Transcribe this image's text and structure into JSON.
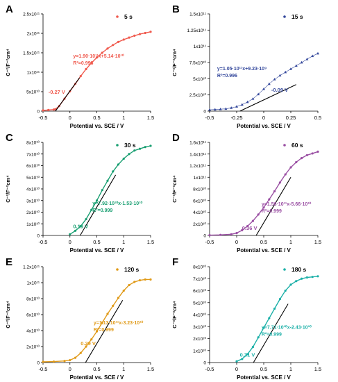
{
  "figure": {
    "xlabel": "Potential vs. SCE / V",
    "ylabel": "C⁻²/F⁻²cm⁴"
  },
  "chart_data": [
    {
      "panel": "A",
      "type": "scatter",
      "legend": "5 s",
      "color": "#f05a4e",
      "xlim": [
        -0.5,
        1.5
      ],
      "xticks": [
        "-0.5",
        "0",
        "0.5",
        "1",
        "1.5"
      ],
      "xtick_values": [
        -0.5,
        0,
        0.5,
        1,
        1.5
      ],
      "ylim": [
        0,
        250000000000.0
      ],
      "yticks": [
        "0",
        "5x10¹⁰",
        "1x10¹¹",
        "1.5x10¹¹",
        "2x10¹¹",
        "2.5x10¹¹"
      ],
      "ytick_values": [
        0,
        50000000000.0,
        100000000000.0,
        150000000000.0,
        200000000000.0,
        250000000000.0
      ],
      "series_x": [
        -0.5,
        -0.4,
        -0.3,
        -0.27,
        -0.2,
        -0.1,
        0,
        0.1,
        0.2,
        0.3,
        0.4,
        0.5,
        0.6,
        0.7,
        0.8,
        0.9,
        1.0,
        1.1,
        1.2,
        1.3,
        1.4,
        1.5
      ],
      "series_y": [
        2000000000.0,
        3000000000.0,
        4000000000.0,
        5000000000.0,
        13000000000.0,
        32000000000.0,
        51000000000.0,
        70000000000.0,
        90000000000.0,
        108000000000.0,
        124000000000.0,
        138000000000.0,
        150000000000.0,
        161000000000.0,
        170000000000.0,
        178000000000.0,
        184000000000.0,
        189000000000.0,
        194000000000.0,
        198000000000.0,
        201000000000.0,
        204000000000.0
      ],
      "fit_x": [
        -0.27,
        0.18
      ],
      "fit_y": [
        0,
        86000000000.0
      ],
      "equation": "y=1.90·10¹¹x+5.14·10¹⁰",
      "r2": "R²=0.998",
      "intercept_label": "-0.27 V"
    },
    {
      "panel": "B",
      "type": "scatter",
      "legend": "15 s",
      "color": "#34489c",
      "xlim": [
        -0.5,
        0.5
      ],
      "xticks": [
        "-0.5",
        "-0.25",
        "0",
        "0.25",
        "0.5"
      ],
      "xtick_values": [
        -0.5,
        -0.25,
        0,
        0.25,
        0.5
      ],
      "ylim": [
        0,
        150000000000.0
      ],
      "yticks": [
        "0",
        "2.5x10¹⁰",
        "5x10¹⁰",
        "7.5x10¹⁰",
        "1x10¹¹",
        "1.25x10¹¹",
        "1.5x10¹¹"
      ],
      "ytick_values": [
        0,
        25000000000.0,
        50000000000.0,
        75000000000.0,
        100000000000.0,
        125000000000.0,
        150000000000.0
      ],
      "series_x": [
        -0.5,
        -0.45,
        -0.4,
        -0.35,
        -0.3,
        -0.25,
        -0.2,
        -0.15,
        -0.1,
        -0.05,
        0,
        0.05,
        0.1,
        0.15,
        0.2,
        0.25,
        0.3,
        0.35,
        0.4,
        0.45,
        0.5
      ],
      "series_y": [
        2000000000.0,
        2500000000.0,
        3000000000.0,
        3500000000.0,
        5000000000.0,
        7000000000.0,
        10000000000.0,
        14000000000.0,
        19000000000.0,
        26000000000.0,
        34000000000.0,
        42000000000.0,
        49000000000.0,
        55000000000.0,
        60000000000.0,
        65000000000.0,
        70000000000.0,
        75000000000.0,
        80000000000.0,
        85000000000.0,
        89000000000.0
      ],
      "fit_x": [
        -0.22,
        0.3
      ],
      "fit_y": [
        -14000000000.0,
        41000000000.0
      ],
      "equation": "y=1.05·10¹¹x+9.23·10⁹",
      "r2": "R²=0.996",
      "intercept_label": "-0.09 V"
    },
    {
      "panel": "C",
      "type": "scatter",
      "legend": "30 s",
      "color": "#1a9f72",
      "xlim": [
        -0.5,
        1.5
      ],
      "xticks": [
        "-0.5",
        "0",
        "0.5",
        "1",
        "1.5"
      ],
      "xtick_values": [
        -0.5,
        0,
        0.5,
        1,
        1.5
      ],
      "ylim": [
        0,
        80000000000.0
      ],
      "yticks": [
        "0",
        "1x10¹⁰",
        "2x10¹⁰",
        "3x10¹⁰",
        "4x10¹⁰",
        "5x10¹⁰",
        "6x10¹⁰",
        "7x10¹⁰",
        "8x10¹⁰"
      ],
      "ytick_values": [
        0,
        10000000000.0,
        20000000000.0,
        30000000000.0,
        40000000000.0,
        50000000000.0,
        60000000000.0,
        70000000000.0,
        80000000000.0
      ],
      "series_x": [
        0,
        0.1,
        0.2,
        0.3,
        0.4,
        0.5,
        0.6,
        0.7,
        0.8,
        0.9,
        1.0,
        1.1,
        1.2,
        1.3,
        1.4,
        1.5
      ],
      "series_y": [
        1000000000.0,
        4000000000.0,
        8000000000.0,
        14000000000.0,
        22000000000.0,
        30000000000.0,
        39000000000.0,
        47000000000.0,
        55000000000.0,
        61000000000.0,
        66000000000.0,
        70000000000.0,
        73000000000.0,
        74500000000.0,
        76000000000.0,
        77000000000.0
      ],
      "fit_x": [
        0.19,
        0.85
      ],
      "fit_y": [
        0,
        52000000000.0
      ],
      "equation": "y=7.92·10¹⁰x-1.53·10¹⁰",
      "r2": "R²=0.999",
      "intercept_label": "0.19 V"
    },
    {
      "panel": "D",
      "type": "scatter",
      "legend": "60 s",
      "color": "#9a4fa3",
      "xlim": [
        -0.5,
        1.5
      ],
      "xticks": [
        "-0.5",
        "0",
        "0.5",
        "1",
        "1.5"
      ],
      "xtick_values": [
        -0.5,
        0,
        0.5,
        1,
        1.5
      ],
      "ylim": [
        0,
        160000000000.0
      ],
      "yticks": [
        "0",
        "2x10¹⁰",
        "4x10¹⁰",
        "6x10¹⁰",
        "8x10¹⁰",
        "1x10¹¹",
        "1.2x10¹¹",
        "1.4x10¹¹",
        "1.6x10¹¹"
      ],
      "ytick_values": [
        0,
        20000000000.0,
        40000000000.0,
        60000000000.0,
        80000000000.0,
        100000000000.0,
        120000000000.0,
        140000000000.0,
        160000000000.0
      ],
      "series_x": [
        -0.5,
        -0.3,
        -0.1,
        0,
        0.1,
        0.2,
        0.3,
        0.4,
        0.5,
        0.6,
        0.7,
        0.8,
        0.9,
        1.0,
        1.1,
        1.2,
        1.3,
        1.4,
        1.5
      ],
      "series_y": [
        500000000.0,
        1000000000.0,
        2000000000.0,
        4000000000.0,
        9000000000.0,
        16000000000.0,
        25000000000.0,
        36000000000.0,
        48000000000.0,
        62000000000.0,
        76000000000.0,
        91000000000.0,
        105000000000.0,
        117000000000.0,
        126000000000.0,
        133000000000.0,
        138000000000.0,
        141000000000.0,
        144000000000.0
      ],
      "fit_x": [
        0.36,
        1.0
      ],
      "fit_y": [
        0,
        100000000000.0
      ],
      "equation": "y=1.56·10¹¹x-5.66·10¹⁰",
      "r2": "R²=0.999",
      "intercept_label": "0.36 V"
    },
    {
      "panel": "E",
      "type": "scatter",
      "legend": "120 s",
      "color": "#e09a18",
      "xlim": [
        -0.5,
        1.5
      ],
      "xticks": [
        "-0.5",
        "0",
        "0.5",
        "1",
        "1.5"
      ],
      "xtick_values": [
        -0.5,
        0,
        0.5,
        1,
        1.5
      ],
      "ylim": [
        0,
        120000000000.0
      ],
      "yticks": [
        "0",
        "2x10¹⁰",
        "4x10¹⁰",
        "6x10¹⁰",
        "8x10¹⁰",
        "1x10¹¹",
        "1.2x10¹¹"
      ],
      "ytick_values": [
        0,
        20000000000.0,
        40000000000.0,
        60000000000.0,
        80000000000.0,
        100000000000.0,
        120000000000.0
      ],
      "series_x": [
        -0.5,
        -0.3,
        -0.1,
        0,
        0.1,
        0.2,
        0.3,
        0.4,
        0.5,
        0.6,
        0.7,
        0.8,
        0.9,
        1.0,
        1.1,
        1.2,
        1.3,
        1.4,
        1.5
      ],
      "series_y": [
        1000000000.0,
        1200000000.0,
        2000000000.0,
        3000000000.0,
        6000000000.0,
        12000000000.0,
        20000000000.0,
        29000000000.0,
        39000000000.0,
        50000000000.0,
        61000000000.0,
        71000000000.0,
        81000000000.0,
        90000000000.0,
        97000000000.0,
        101000000000.0,
        103000000000.0,
        104000000000.0,
        104000000000.0
      ],
      "fit_x": [
        0.29,
        0.98
      ],
      "fit_y": [
        0,
        78000000000.0
      ],
      "equation": "y=1.13·10¹¹x-3.23·10¹⁰",
      "r2": "R²=0.999",
      "intercept_label": "0.29 V"
    },
    {
      "panel": "F",
      "type": "scatter",
      "legend": "180 s",
      "color": "#1cb0a8",
      "xlim": [
        -0.5,
        1.5
      ],
      "xticks": [
        "-0.5",
        "0",
        "0.5",
        "1",
        "1.5"
      ],
      "xtick_values": [
        -0.5,
        0,
        0.5,
        1,
        1.5
      ],
      "ylim": [
        0,
        80000000000.0
      ],
      "yticks": [
        "0",
        "1x10¹⁰",
        "2x10¹⁰",
        "3x10¹⁰",
        "4x10¹⁰",
        "5x10¹⁰",
        "6x10¹⁰",
        "7x10¹⁰",
        "8x10¹⁰"
      ],
      "ytick_values": [
        0,
        10000000000.0,
        20000000000.0,
        30000000000.0,
        40000000000.0,
        50000000000.0,
        60000000000.0,
        70000000000.0,
        80000000000.0
      ],
      "series_x": [
        0,
        0.1,
        0.2,
        0.3,
        0.4,
        0.5,
        0.6,
        0.7,
        0.8,
        0.9,
        1.0,
        1.1,
        1.2,
        1.3,
        1.4,
        1.5
      ],
      "series_y": [
        1000000000.0,
        3000000000.0,
        7000000000.0,
        13000000000.0,
        21000000000.0,
        29000000000.0,
        37000000000.0,
        45000000000.0,
        53000000000.0,
        60000000000.0,
        65000000000.0,
        68000000000.0,
        70000000000.0,
        71000000000.0,
        71500000000.0,
        72000000000.0
      ],
      "fit_x": [
        0.31,
        0.95
      ],
      "fit_y": [
        0,
        49000000000.0
      ],
      "equation": "y=7.71·10¹⁰x-2.43·10¹⁰",
      "r2": "R²=0.999",
      "intercept_label": "0.31 V"
    }
  ]
}
